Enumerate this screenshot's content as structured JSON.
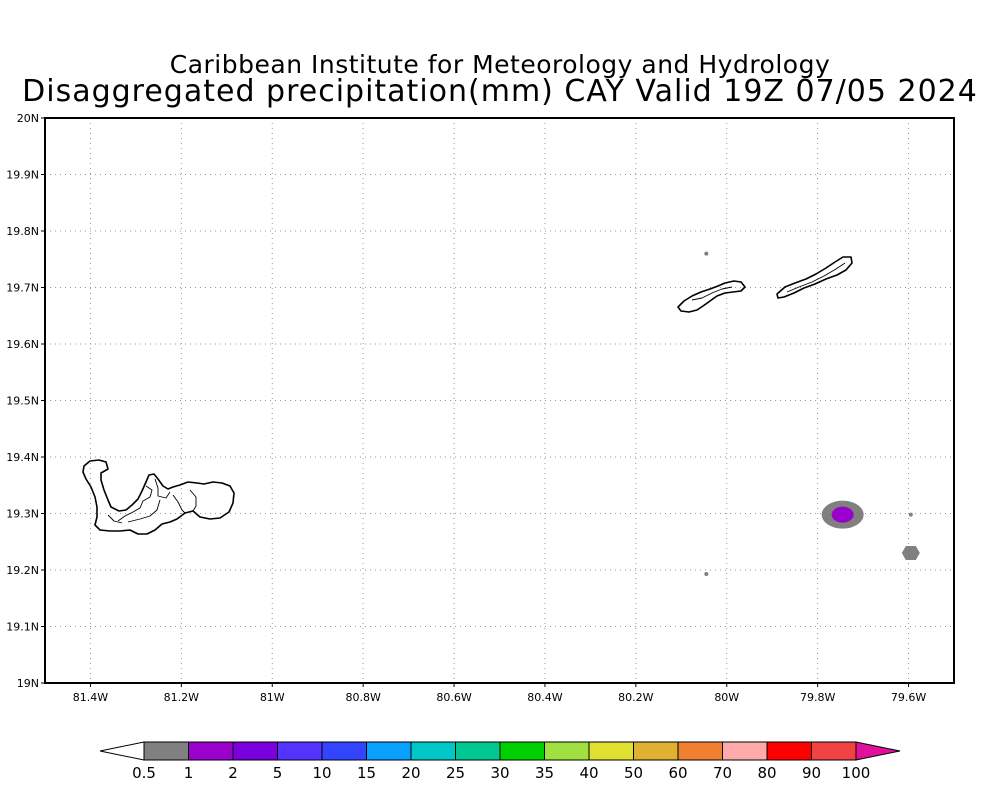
{
  "title": {
    "line1": "Caribbean Institute for Meteorology and Hydrology",
    "line2": "Disaggregated precipitation(mm) CAY Valid 19Z 07/05 2024"
  },
  "map": {
    "lon_range": [
      -81.5,
      -79.5
    ],
    "lat_range": [
      19.0,
      20.0
    ],
    "grid": true,
    "lat_ticks": [
      {
        "value": 20.0,
        "label": "20N"
      },
      {
        "value": 19.9,
        "label": "19.9N"
      },
      {
        "value": 19.8,
        "label": "19.8N"
      },
      {
        "value": 19.7,
        "label": "19.7N"
      },
      {
        "value": 19.6,
        "label": "19.6N"
      },
      {
        "value": 19.5,
        "label": "19.5N"
      },
      {
        "value": 19.4,
        "label": "19.4N"
      },
      {
        "value": 19.3,
        "label": "19.3N"
      },
      {
        "value": 19.2,
        "label": "19.2N"
      },
      {
        "value": 19.1,
        "label": "19.1N"
      },
      {
        "value": 19.0,
        "label": "19N"
      }
    ],
    "lon_ticks": [
      {
        "value": -81.4,
        "label": "81.4W"
      },
      {
        "value": -81.2,
        "label": "81.2W"
      },
      {
        "value": -81.0,
        "label": "81W"
      },
      {
        "value": -80.8,
        "label": "80.8W"
      },
      {
        "value": -80.6,
        "label": "80.6W"
      },
      {
        "value": -80.4,
        "label": "80.4W"
      },
      {
        "value": -80.2,
        "label": "80.2W"
      },
      {
        "value": -80.0,
        "label": "80W"
      },
      {
        "value": -79.8,
        "label": "79.8W"
      },
      {
        "value": -79.6,
        "label": "79.6W"
      }
    ],
    "precip_cells": [
      {
        "lon": -79.745,
        "lat": 19.298,
        "value": 0.5,
        "color": "#808080"
      },
      {
        "lon": -79.745,
        "lat": 19.298,
        "value": 1,
        "color": "#9900cc"
      },
      {
        "lon": -79.595,
        "lat": 19.23,
        "value": 0.5,
        "color": "#808080"
      },
      {
        "lon": -79.595,
        "lat": 19.298,
        "value": 0.5,
        "color": "#808080"
      },
      {
        "lon": -80.045,
        "lat": 19.193,
        "value": 0.5,
        "color": "#808080"
      },
      {
        "lon": -80.045,
        "lat": 19.76,
        "value": 0.5,
        "color": "#808080"
      }
    ]
  },
  "colorbar": {
    "labels": [
      "0.5",
      "1",
      "2",
      "5",
      "10",
      "15",
      "20",
      "25",
      "30",
      "35",
      "40",
      "50",
      "60",
      "70",
      "80",
      "90",
      "100"
    ],
    "under_color": "#ffffff",
    "over_color": "#e0109a",
    "colors": [
      "#808080",
      "#9900cc",
      "#7a00dd",
      "#5533ff",
      "#3344ff",
      "#0aa0ff",
      "#00c8c8",
      "#00c890",
      "#00d000",
      "#a0e040",
      "#e0e030",
      "#e0b030",
      "#f08030",
      "#ffaaaa",
      "#ff0000",
      "#f04444"
    ]
  }
}
